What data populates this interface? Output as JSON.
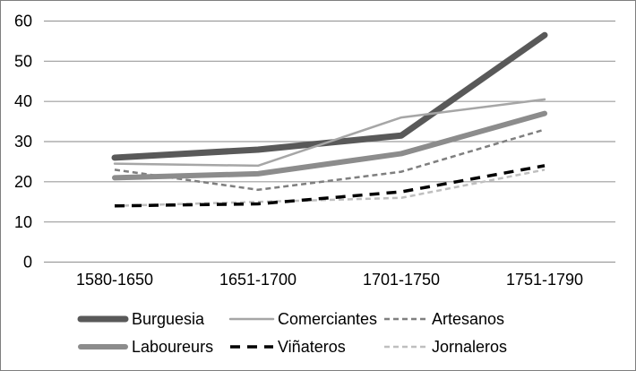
{
  "figure": {
    "background_color": "#ffffff",
    "border_color": "#7f7f7f",
    "gridline_color": "#9d9d9d",
    "text_color": "#000000"
  },
  "chart_data": {
    "type": "line",
    "title": "",
    "xlabel": "",
    "ylabel": "",
    "categories": [
      "1580-1650",
      "1651-1700",
      "1701-1750",
      "1751-1790"
    ],
    "series": [
      {
        "name": "Burguesia",
        "values": [
          26,
          28,
          31.5,
          56.5
        ],
        "color": "#595959",
        "width": 7,
        "dash": ""
      },
      {
        "name": "Comerciantes",
        "values": [
          24.5,
          24,
          36,
          40.5
        ],
        "color": "#a6a6a6",
        "width": 2.5,
        "dash": ""
      },
      {
        "name": "Artesanos",
        "values": [
          23,
          18,
          22.5,
          33
        ],
        "color": "#7f7f7f",
        "width": 2.5,
        "dash": "6 4"
      },
      {
        "name": "Laboureurs",
        "values": [
          21,
          22,
          27,
          37
        ],
        "color": "#8c8c8c",
        "width": 6,
        "dash": ""
      },
      {
        "name": "Viñateros",
        "values": [
          14,
          14.5,
          17.5,
          24
        ],
        "color": "#000000",
        "width": 3.5,
        "dash": "11 8"
      },
      {
        "name": "Jornaleros",
        "values": [
          14,
          15,
          16,
          23
        ],
        "color": "#bfbfbf",
        "width": 2.5,
        "dash": "6 4"
      }
    ],
    "yticks": [
      "60",
      "50",
      "40",
      "30",
      "20",
      "10",
      "0"
    ],
    "ylim": [
      0,
      60
    ],
    "grid": true,
    "legend_position": "bottom"
  }
}
